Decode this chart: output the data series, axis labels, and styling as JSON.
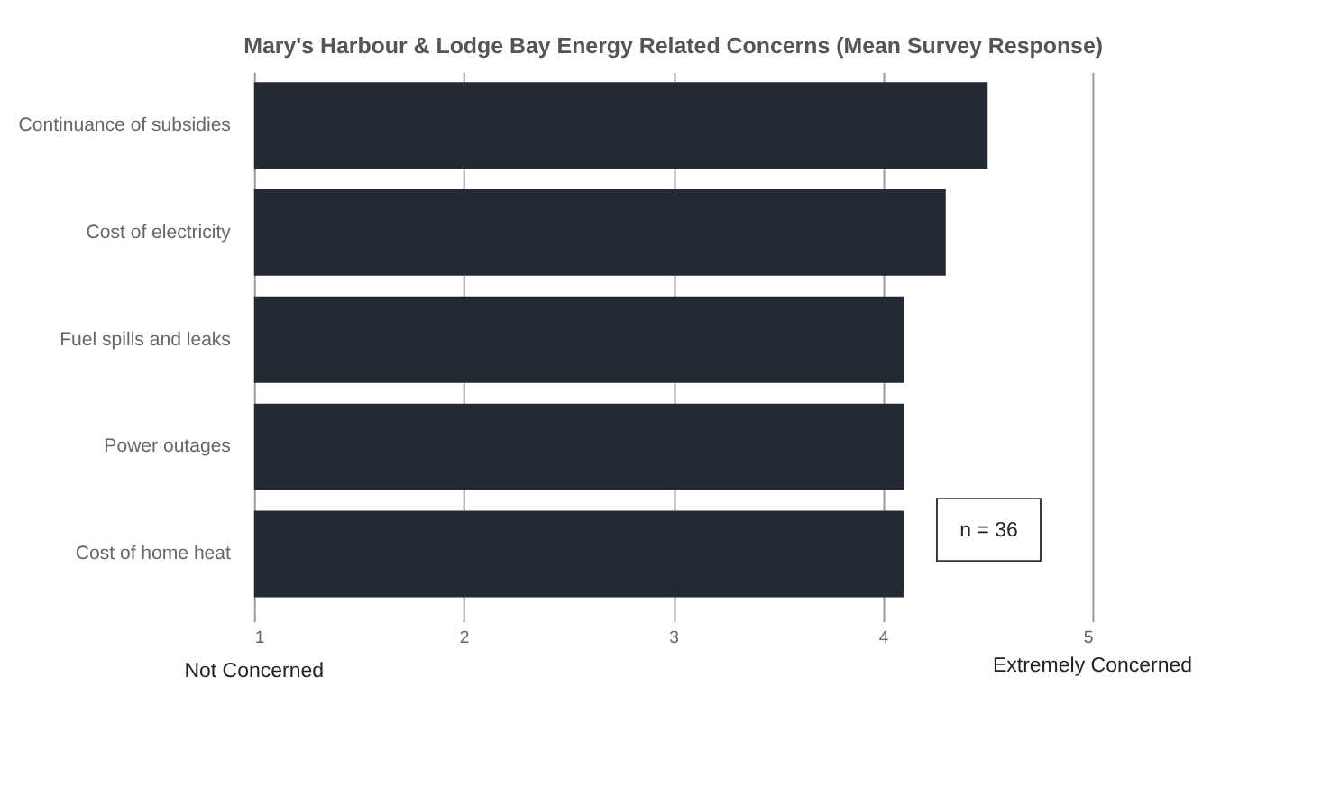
{
  "chart_data": {
    "type": "bar",
    "orientation": "horizontal",
    "title": "Mary's Harbour & Lodge Bay Energy Related Concerns (Mean Survey Response)",
    "categories": [
      "Continuance of subsidies",
      "Cost of electricity",
      "Fuel spills and leaks",
      "Power outages",
      "Cost of home heat"
    ],
    "values": [
      4.5,
      4.3,
      4.1,
      4.1,
      4.1
    ],
    "color": "#232a35",
    "xlim": [
      1,
      5
    ],
    "xticks": [
      1,
      2,
      3,
      4,
      5
    ],
    "grid": "x",
    "annotations": [
      "Not Concerned",
      "Extremely Concerned",
      "n = 36"
    ]
  }
}
